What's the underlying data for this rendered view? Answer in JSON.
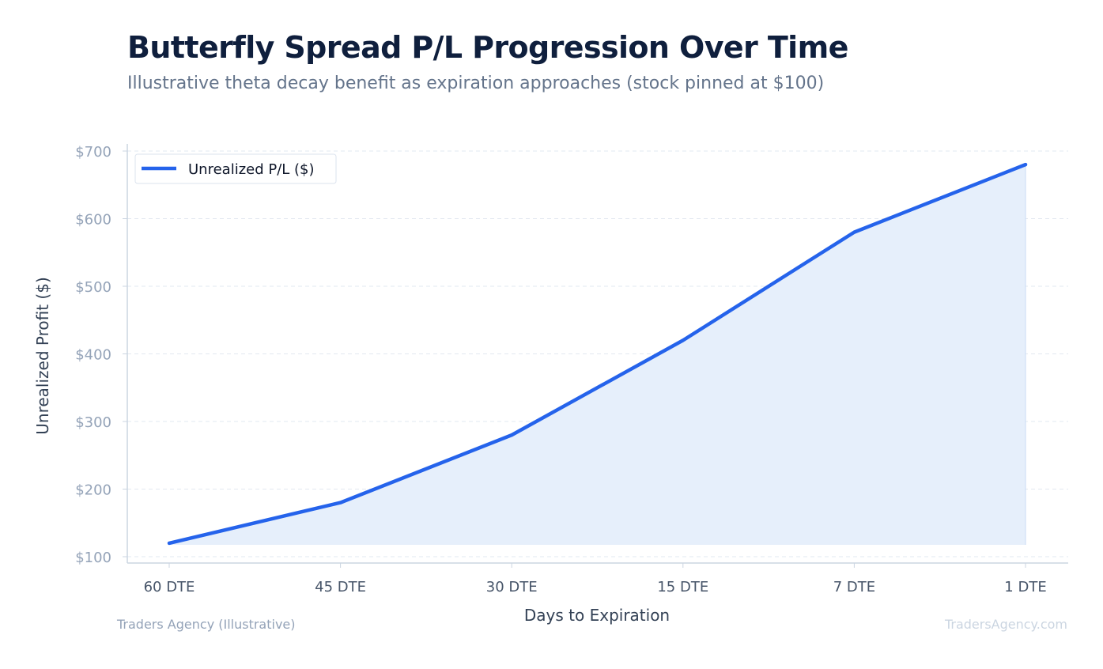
{
  "title": "Butterfly Spread P/L Progression Over Time",
  "subtitle": "Illustrative theta decay benefit as expiration approaches (stock pinned at $100)",
  "footer": {
    "source": "Traders Agency (Illustrative)",
    "watermark": "TradersAgency.com"
  },
  "colors": {
    "line": "#2563eb",
    "area_fill": "#e6effb",
    "grid": "#e2e8f0",
    "axis": "#cbd5e1"
  },
  "chart_data": {
    "type": "area",
    "categories": [
      "60 DTE",
      "45 DTE",
      "30 DTE",
      "15 DTE",
      "7 DTE",
      "1 DTE"
    ],
    "series": [
      {
        "name": "Unrealized P/L ($)",
        "values": [
          120,
          180,
          280,
          420,
          580,
          680
        ]
      }
    ],
    "xlabel": "Days to Expiration",
    "ylabel": "Unrealized Profit ($)",
    "ylim": [
      100,
      700
    ],
    "yticks": [
      100,
      200,
      300,
      400,
      500,
      600,
      700
    ],
    "ytick_labels": [
      "$100",
      "$200",
      "$300",
      "$400",
      "$500",
      "$600",
      "$700"
    ],
    "grid": true,
    "legend_position": "top-left"
  }
}
